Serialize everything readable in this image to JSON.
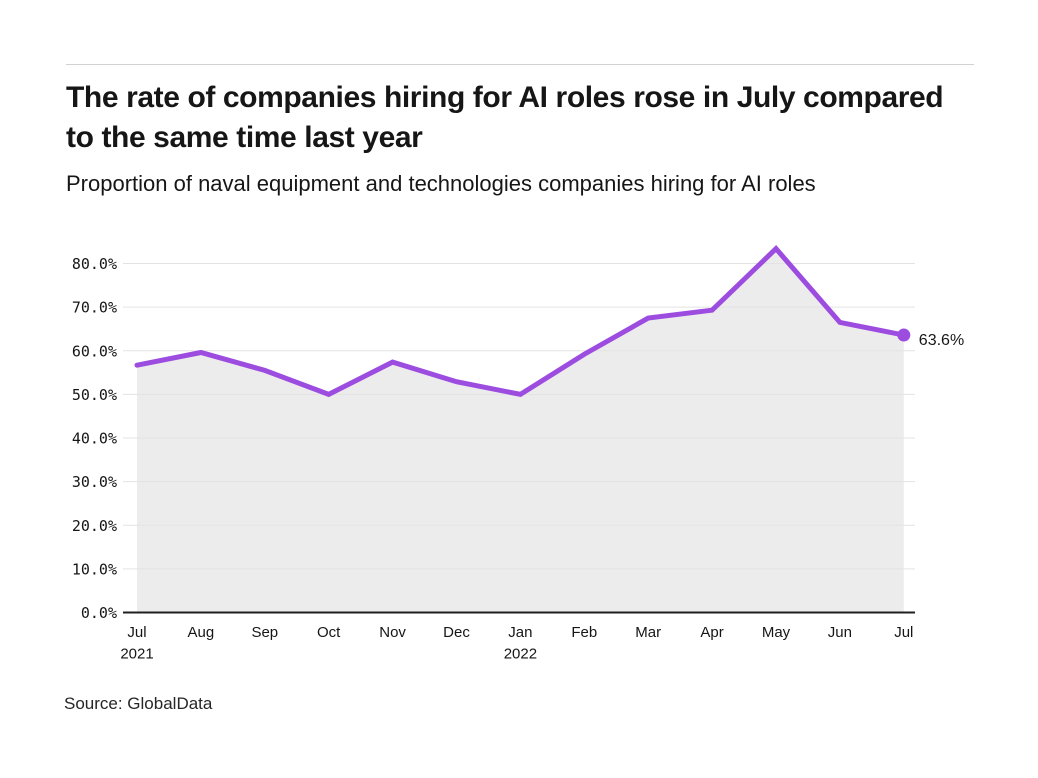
{
  "source": "Source: GlobalData",
  "colors": {
    "line": "#9d4ce0",
    "area_fill": "#ececec",
    "gridline": "#e3e3e3",
    "axis": "#1f1f1f",
    "text": "#161616"
  },
  "chart_data": {
    "type": "area",
    "title": "The rate of companies hiring for AI roles rose in July compared to the same time last year",
    "subtitle": "Proportion of naval equipment and technologies companies hiring for AI roles",
    "categories": [
      "Jul",
      "Aug",
      "Sep",
      "Oct",
      "Nov",
      "Dec",
      "Jan",
      "Feb",
      "Mar",
      "Apr",
      "May",
      "Jun",
      "Jul"
    ],
    "year_labels": [
      {
        "index": 0,
        "label": "2021"
      },
      {
        "index": 6,
        "label": "2022"
      }
    ],
    "values": [
      56.7,
      59.6,
      55.5,
      50.0,
      57.4,
      52.9,
      50.0,
      59.2,
      67.5,
      69.3,
      83.4,
      66.5,
      63.6
    ],
    "end_label": "63.6%",
    "yticks": [
      0,
      10,
      20,
      30,
      40,
      50,
      60,
      70,
      80
    ],
    "ylim": [
      0,
      80
    ],
    "xlabel": "",
    "ylabel": "",
    "grid": true,
    "legend": false
  }
}
